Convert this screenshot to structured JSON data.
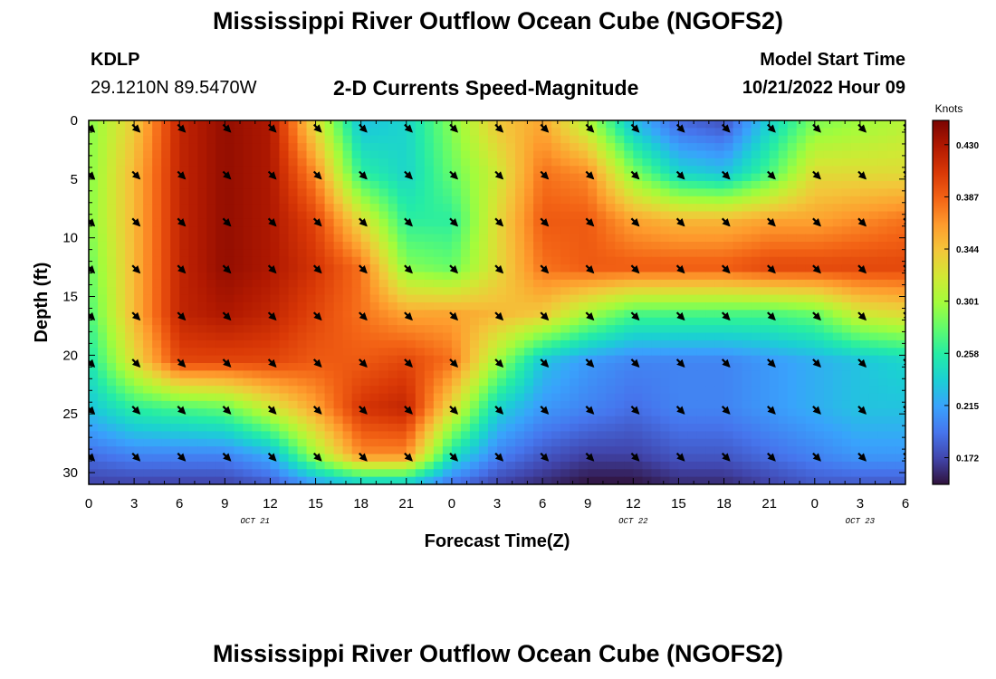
{
  "header": {
    "title": "Mississippi River Outflow Ocean Cube (NGOFS2)",
    "station_id": "KDLP",
    "station_coords": "29.1210N  89.5470W",
    "plot_title": "2-D Currents Speed-Magnitude",
    "model_start_label": "Model Start Time",
    "model_start_value": "10/21/2022 Hour 09"
  },
  "footer": {
    "title": "Mississippi River Outflow Ocean Cube (NGOFS2)"
  },
  "colors": {
    "arrow": "#000000",
    "colormap": [
      "#30123b",
      "#4145ab",
      "#4675ed",
      "#39a2fc",
      "#1bcfd4",
      "#24eca6",
      "#61fc6c",
      "#a4fc3b",
      "#d1e834",
      "#f3c63a",
      "#fe9b2d",
      "#f36315",
      "#d93806",
      "#b11901",
      "#7a0402"
    ]
  },
  "chart_data": {
    "type": "heatmap",
    "xlabel": "Forecast Time(Z)",
    "ylabel": "Depth (ft)",
    "x_tick_labels": [
      "0",
      "3",
      "6",
      "9",
      "12",
      "15",
      "18",
      "21",
      "0",
      "3",
      "6",
      "9",
      "12",
      "15",
      "18",
      "21",
      "0",
      "3",
      "6"
    ],
    "date_labels": [
      {
        "label": "OCT 21",
        "hour_index": 11
      },
      {
        "label": "OCT 22",
        "hour_index": 36
      },
      {
        "label": "OCT 23",
        "hour_index": 51
      }
    ],
    "ylim": [
      0,
      31
    ],
    "y_ticks": [
      0,
      5,
      10,
      15,
      20,
      25,
      30
    ],
    "colorbar": {
      "label": "Knots",
      "range": [
        0.15,
        0.45
      ],
      "ticks": [
        0.43,
        0.387,
        0.344,
        0.301,
        0.258,
        0.215,
        0.172
      ],
      "tick_labels": [
        "0.430",
        "0.387",
        "0.344",
        "0.301",
        "0.258",
        "0.215",
        "0.172"
      ]
    },
    "hours": [
      0,
      3,
      6,
      9,
      12,
      15,
      18,
      21,
      24,
      27,
      30,
      33,
      36,
      39,
      42,
      45,
      48,
      51,
      54
    ],
    "depths": [
      0.5,
      4.5,
      8.5,
      12.5,
      16.5,
      20.5,
      24.5,
      28.5,
      31
    ],
    "values": [
      [
        0.29,
        0.34,
        0.42,
        0.44,
        0.43,
        0.33,
        0.23,
        0.24,
        0.29,
        0.34,
        0.36,
        0.31,
        0.23,
        0.19,
        0.18,
        0.24,
        0.29,
        0.3,
        0.31
      ],
      [
        0.29,
        0.35,
        0.42,
        0.44,
        0.43,
        0.37,
        0.26,
        0.24,
        0.28,
        0.32,
        0.38,
        0.37,
        0.29,
        0.24,
        0.23,
        0.27,
        0.33,
        0.33,
        0.33
      ],
      [
        0.29,
        0.35,
        0.42,
        0.44,
        0.43,
        0.4,
        0.33,
        0.26,
        0.26,
        0.33,
        0.39,
        0.39,
        0.36,
        0.35,
        0.35,
        0.36,
        0.36,
        0.37,
        0.38
      ],
      [
        0.28,
        0.35,
        0.42,
        0.44,
        0.43,
        0.41,
        0.38,
        0.29,
        0.28,
        0.33,
        0.38,
        0.39,
        0.39,
        0.39,
        0.39,
        0.4,
        0.4,
        0.4,
        0.4
      ],
      [
        0.27,
        0.35,
        0.42,
        0.43,
        0.42,
        0.4,
        0.38,
        0.36,
        0.36,
        0.35,
        0.34,
        0.3,
        0.27,
        0.27,
        0.27,
        0.27,
        0.28,
        0.32,
        0.33
      ],
      [
        0.25,
        0.33,
        0.4,
        0.4,
        0.4,
        0.39,
        0.39,
        0.4,
        0.38,
        0.3,
        0.23,
        0.21,
        0.2,
        0.2,
        0.2,
        0.21,
        0.22,
        0.23,
        0.24
      ],
      [
        0.23,
        0.26,
        0.27,
        0.28,
        0.32,
        0.36,
        0.41,
        0.42,
        0.33,
        0.24,
        0.21,
        0.2,
        0.19,
        0.2,
        0.2,
        0.21,
        0.22,
        0.23,
        0.23
      ],
      [
        0.19,
        0.2,
        0.2,
        0.2,
        0.22,
        0.3,
        0.37,
        0.37,
        0.25,
        0.2,
        0.18,
        0.17,
        0.17,
        0.18,
        0.18,
        0.19,
        0.2,
        0.21,
        0.21
      ],
      [
        0.17,
        0.17,
        0.17,
        0.17,
        0.18,
        0.21,
        0.23,
        0.23,
        0.19,
        0.17,
        0.16,
        0.15,
        0.15,
        0.16,
        0.16,
        0.17,
        0.18,
        0.18,
        0.18
      ]
    ],
    "arrow_depths": [
      0.5,
      4.5,
      8.5,
      12.5,
      16.5,
      20.5,
      24.5,
      28.5
    ],
    "arrow_direction_deg": 135
  }
}
